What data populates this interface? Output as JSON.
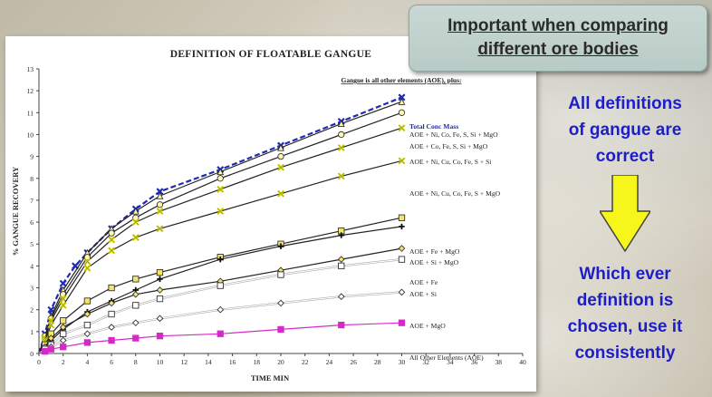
{
  "callout": {
    "line1": "Important when comparing",
    "line2": "different ore bodies"
  },
  "side_top": [
    "All definitions",
    "of gangue are",
    "correct"
  ],
  "side_bottom": [
    "Which ever",
    "definition is",
    "chosen, use it",
    "consistently"
  ],
  "colors": {
    "side_text": "#1e1ec8",
    "arrow_fill": "#f6f61c",
    "highlight_series": "#1f2bb5",
    "aoe_series": "#d42bc7"
  },
  "icons": {
    "arrow": "down-arrow-icon"
  },
  "chart_data": {
    "type": "line",
    "title": "DEFINITION OF FLOATABLE GANGUE",
    "xlabel": "TIME MIN",
    "ylabel": "% GANGUE RECOVERY",
    "xlim": [
      0,
      40
    ],
    "ylim": [
      0,
      13
    ],
    "xticks": [
      0,
      2,
      4,
      6,
      8,
      10,
      12,
      14,
      16,
      18,
      20,
      22,
      24,
      26,
      28,
      30,
      32,
      34,
      36,
      38,
      40
    ],
    "yticks": [
      0,
      1,
      2,
      3,
      4,
      5,
      6,
      7,
      8,
      9,
      10,
      11,
      12,
      13
    ],
    "grid": false,
    "legend_header": "Gangue is all other elements (AOE), plus:",
    "series": [
      {
        "name": "Total Conc Mass",
        "marker": "x",
        "color": "#1f2bb5",
        "dashed": true,
        "x": [
          0.5,
          1,
          2,
          3,
          4,
          6,
          8,
          10,
          15,
          20,
          25,
          30
        ],
        "y": [
          0.9,
          2.0,
          3.2,
          4.0,
          4.6,
          5.7,
          6.6,
          7.4,
          8.4,
          9.5,
          10.6,
          11.7
        ]
      },
      {
        "name": "AOE + Ni, Co, Fe, S, Si + MgO",
        "marker": "triangle",
        "color": "#222222",
        "x": [
          0.5,
          1,
          2,
          4,
          6,
          8,
          10,
          15,
          20,
          25,
          30
        ],
        "y": [
          0.8,
          1.7,
          2.9,
          4.6,
          5.7,
          6.5,
          7.2,
          8.3,
          9.4,
          10.5,
          11.5
        ]
      },
      {
        "name": "AOE + Co, Fe, S, Si + MgO",
        "marker": "circle",
        "color": "#222222",
        "x": [
          0.5,
          1,
          2,
          4,
          6,
          8,
          10,
          15,
          20,
          25,
          30
        ],
        "y": [
          0.8,
          1.6,
          2.7,
          4.4,
          5.5,
          6.2,
          6.8,
          8.0,
          9.0,
          10.0,
          11.0
        ]
      },
      {
        "name": "AOE + Ni, Cu, Co, Fe, S + Si",
        "marker": "x-yellow",
        "color": "#222222",
        "x": [
          0.5,
          1,
          2,
          4,
          6,
          8,
          10,
          15,
          20,
          25,
          30
        ],
        "y": [
          0.7,
          1.5,
          2.5,
          4.2,
          5.2,
          6.0,
          6.5,
          7.5,
          8.5,
          9.4,
          10.3
        ]
      },
      {
        "name": "AOE + Ni, Cu, Co, Fe, S + MgO",
        "marker": "x-yellow",
        "color": "#222222",
        "x": [
          0.5,
          1,
          2,
          4,
          6,
          8,
          10,
          15,
          20,
          25,
          30
        ],
        "y": [
          0.6,
          1.3,
          2.2,
          3.9,
          4.7,
          5.3,
          5.7,
          6.5,
          7.3,
          8.1,
          8.8
        ]
      },
      {
        "name": "AOE + Fe + MgO",
        "marker": "square",
        "color": "#222222",
        "x": [
          0.5,
          1,
          2,
          4,
          6,
          8,
          10,
          15,
          20,
          25,
          30
        ],
        "y": [
          0.4,
          0.9,
          1.5,
          2.4,
          3.0,
          3.4,
          3.7,
          4.4,
          5.0,
          5.6,
          6.2
        ]
      },
      {
        "name": "AOE + Si + MgO",
        "marker": "plus",
        "color": "#222222",
        "x": [
          0.5,
          1,
          2,
          4,
          6,
          8,
          10,
          15,
          20,
          25,
          30
        ],
        "y": [
          0.3,
          0.6,
          1.1,
          1.9,
          2.4,
          2.9,
          3.4,
          4.3,
          4.9,
          5.4,
          5.8
        ]
      },
      {
        "name": "AOE + Fe",
        "marker": "diamond",
        "color": "#222222",
        "x": [
          0.5,
          1,
          2,
          4,
          6,
          8,
          10,
          15,
          20,
          25,
          30
        ],
        "y": [
          0.3,
          0.7,
          1.2,
          1.8,
          2.3,
          2.7,
          2.9,
          3.3,
          3.8,
          4.3,
          4.8
        ]
      },
      {
        "name": "AOE + Si",
        "marker": "square-open",
        "color": "#222222",
        "x": [
          0.5,
          1,
          2,
          4,
          6,
          8,
          10,
          15,
          20,
          25,
          30
        ],
        "y": [
          0.2,
          0.4,
          0.9,
          1.3,
          1.8,
          2.2,
          2.5,
          3.1,
          3.6,
          4.0,
          4.3
        ]
      },
      {
        "name": "AOE + MgO",
        "marker": "diamond-open",
        "color": "#222222",
        "x": [
          0.5,
          1,
          2,
          4,
          6,
          8,
          10,
          15,
          20,
          25,
          30
        ],
        "y": [
          0.1,
          0.3,
          0.6,
          0.9,
          1.2,
          1.4,
          1.6,
          2.0,
          2.3,
          2.6,
          2.8
        ]
      },
      {
        "name": "All Other Elements (AOE)",
        "marker": "square",
        "color": "#d42bc7",
        "x": [
          0.5,
          1,
          2,
          4,
          6,
          8,
          10,
          15,
          20,
          25,
          30
        ],
        "y": [
          0.1,
          0.2,
          0.3,
          0.5,
          0.6,
          0.7,
          0.8,
          0.9,
          1.1,
          1.3,
          1.4
        ]
      }
    ]
  }
}
